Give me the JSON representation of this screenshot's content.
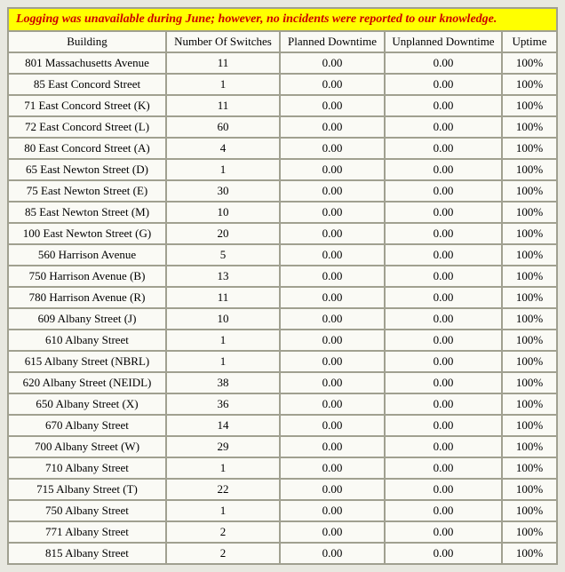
{
  "banner": "Logging was unavailable during June; however, no incidents were reported to our knowledge.",
  "columns": [
    "Building",
    "Number Of Switches",
    "Planned Downtime",
    "Unplanned Downtime",
    "Uptime"
  ],
  "colors": {
    "banner_bg": "#ffff00",
    "banner_text": "#cc0000",
    "grid": "#a0a090",
    "cell_bg": "#fafaf5",
    "page_bg": "#e8e8e0"
  },
  "rows": [
    {
      "building": "801 Massachusetts Avenue",
      "switches": "11",
      "planned": "0.00",
      "unplanned": "0.00",
      "uptime": "100%"
    },
    {
      "building": "85 East Concord Street",
      "switches": "1",
      "planned": "0.00",
      "unplanned": "0.00",
      "uptime": "100%"
    },
    {
      "building": "71 East Concord Street (K)",
      "switches": "11",
      "planned": "0.00",
      "unplanned": "0.00",
      "uptime": "100%"
    },
    {
      "building": "72 East Concord Street (L)",
      "switches": "60",
      "planned": "0.00",
      "unplanned": "0.00",
      "uptime": "100%"
    },
    {
      "building": "80 East Concord Street (A)",
      "switches": "4",
      "planned": "0.00",
      "unplanned": "0.00",
      "uptime": "100%"
    },
    {
      "building": "65 East Newton Street (D)",
      "switches": "1",
      "planned": "0.00",
      "unplanned": "0.00",
      "uptime": "100%"
    },
    {
      "building": "75 East Newton Street (E)",
      "switches": "30",
      "planned": "0.00",
      "unplanned": "0.00",
      "uptime": "100%"
    },
    {
      "building": "85 East Newton Street (M)",
      "switches": "10",
      "planned": "0.00",
      "unplanned": "0.00",
      "uptime": "100%"
    },
    {
      "building": "100 East Newton Street (G)",
      "switches": "20",
      "planned": "0.00",
      "unplanned": "0.00",
      "uptime": "100%"
    },
    {
      "building": "560 Harrison Avenue",
      "switches": "5",
      "planned": "0.00",
      "unplanned": "0.00",
      "uptime": "100%"
    },
    {
      "building": "750 Harrison Avenue (B)",
      "switches": "13",
      "planned": "0.00",
      "unplanned": "0.00",
      "uptime": "100%"
    },
    {
      "building": "780 Harrison Avenue (R)",
      "switches": "11",
      "planned": "0.00",
      "unplanned": "0.00",
      "uptime": "100%"
    },
    {
      "building": "609 Albany Street (J)",
      "switches": "10",
      "planned": "0.00",
      "unplanned": "0.00",
      "uptime": "100%"
    },
    {
      "building": "610 Albany Street",
      "switches": "1",
      "planned": "0.00",
      "unplanned": "0.00",
      "uptime": "100%"
    },
    {
      "building": "615 Albany Street (NBRL)",
      "switches": "1",
      "planned": "0.00",
      "unplanned": "0.00",
      "uptime": "100%"
    },
    {
      "building": "620 Albany Street (NEIDL)",
      "switches": "38",
      "planned": "0.00",
      "unplanned": "0.00",
      "uptime": "100%"
    },
    {
      "building": "650 Albany Street (X)",
      "switches": "36",
      "planned": "0.00",
      "unplanned": "0.00",
      "uptime": "100%"
    },
    {
      "building": "670 Albany Street",
      "switches": "14",
      "planned": "0.00",
      "unplanned": "0.00",
      "uptime": "100%"
    },
    {
      "building": "700 Albany Street (W)",
      "switches": "29",
      "planned": "0.00",
      "unplanned": "0.00",
      "uptime": "100%"
    },
    {
      "building": "710 Albany Street",
      "switches": "1",
      "planned": "0.00",
      "unplanned": "0.00",
      "uptime": "100%"
    },
    {
      "building": "715 Albany Street (T)",
      "switches": "22",
      "planned": "0.00",
      "unplanned": "0.00",
      "uptime": "100%"
    },
    {
      "building": "750 Albany Street",
      "switches": "1",
      "planned": "0.00",
      "unplanned": "0.00",
      "uptime": "100%"
    },
    {
      "building": "771 Albany Street",
      "switches": "2",
      "planned": "0.00",
      "unplanned": "0.00",
      "uptime": "100%"
    },
    {
      "building": "815 Albany Street",
      "switches": "2",
      "planned": "0.00",
      "unplanned": "0.00",
      "uptime": "100%"
    }
  ]
}
